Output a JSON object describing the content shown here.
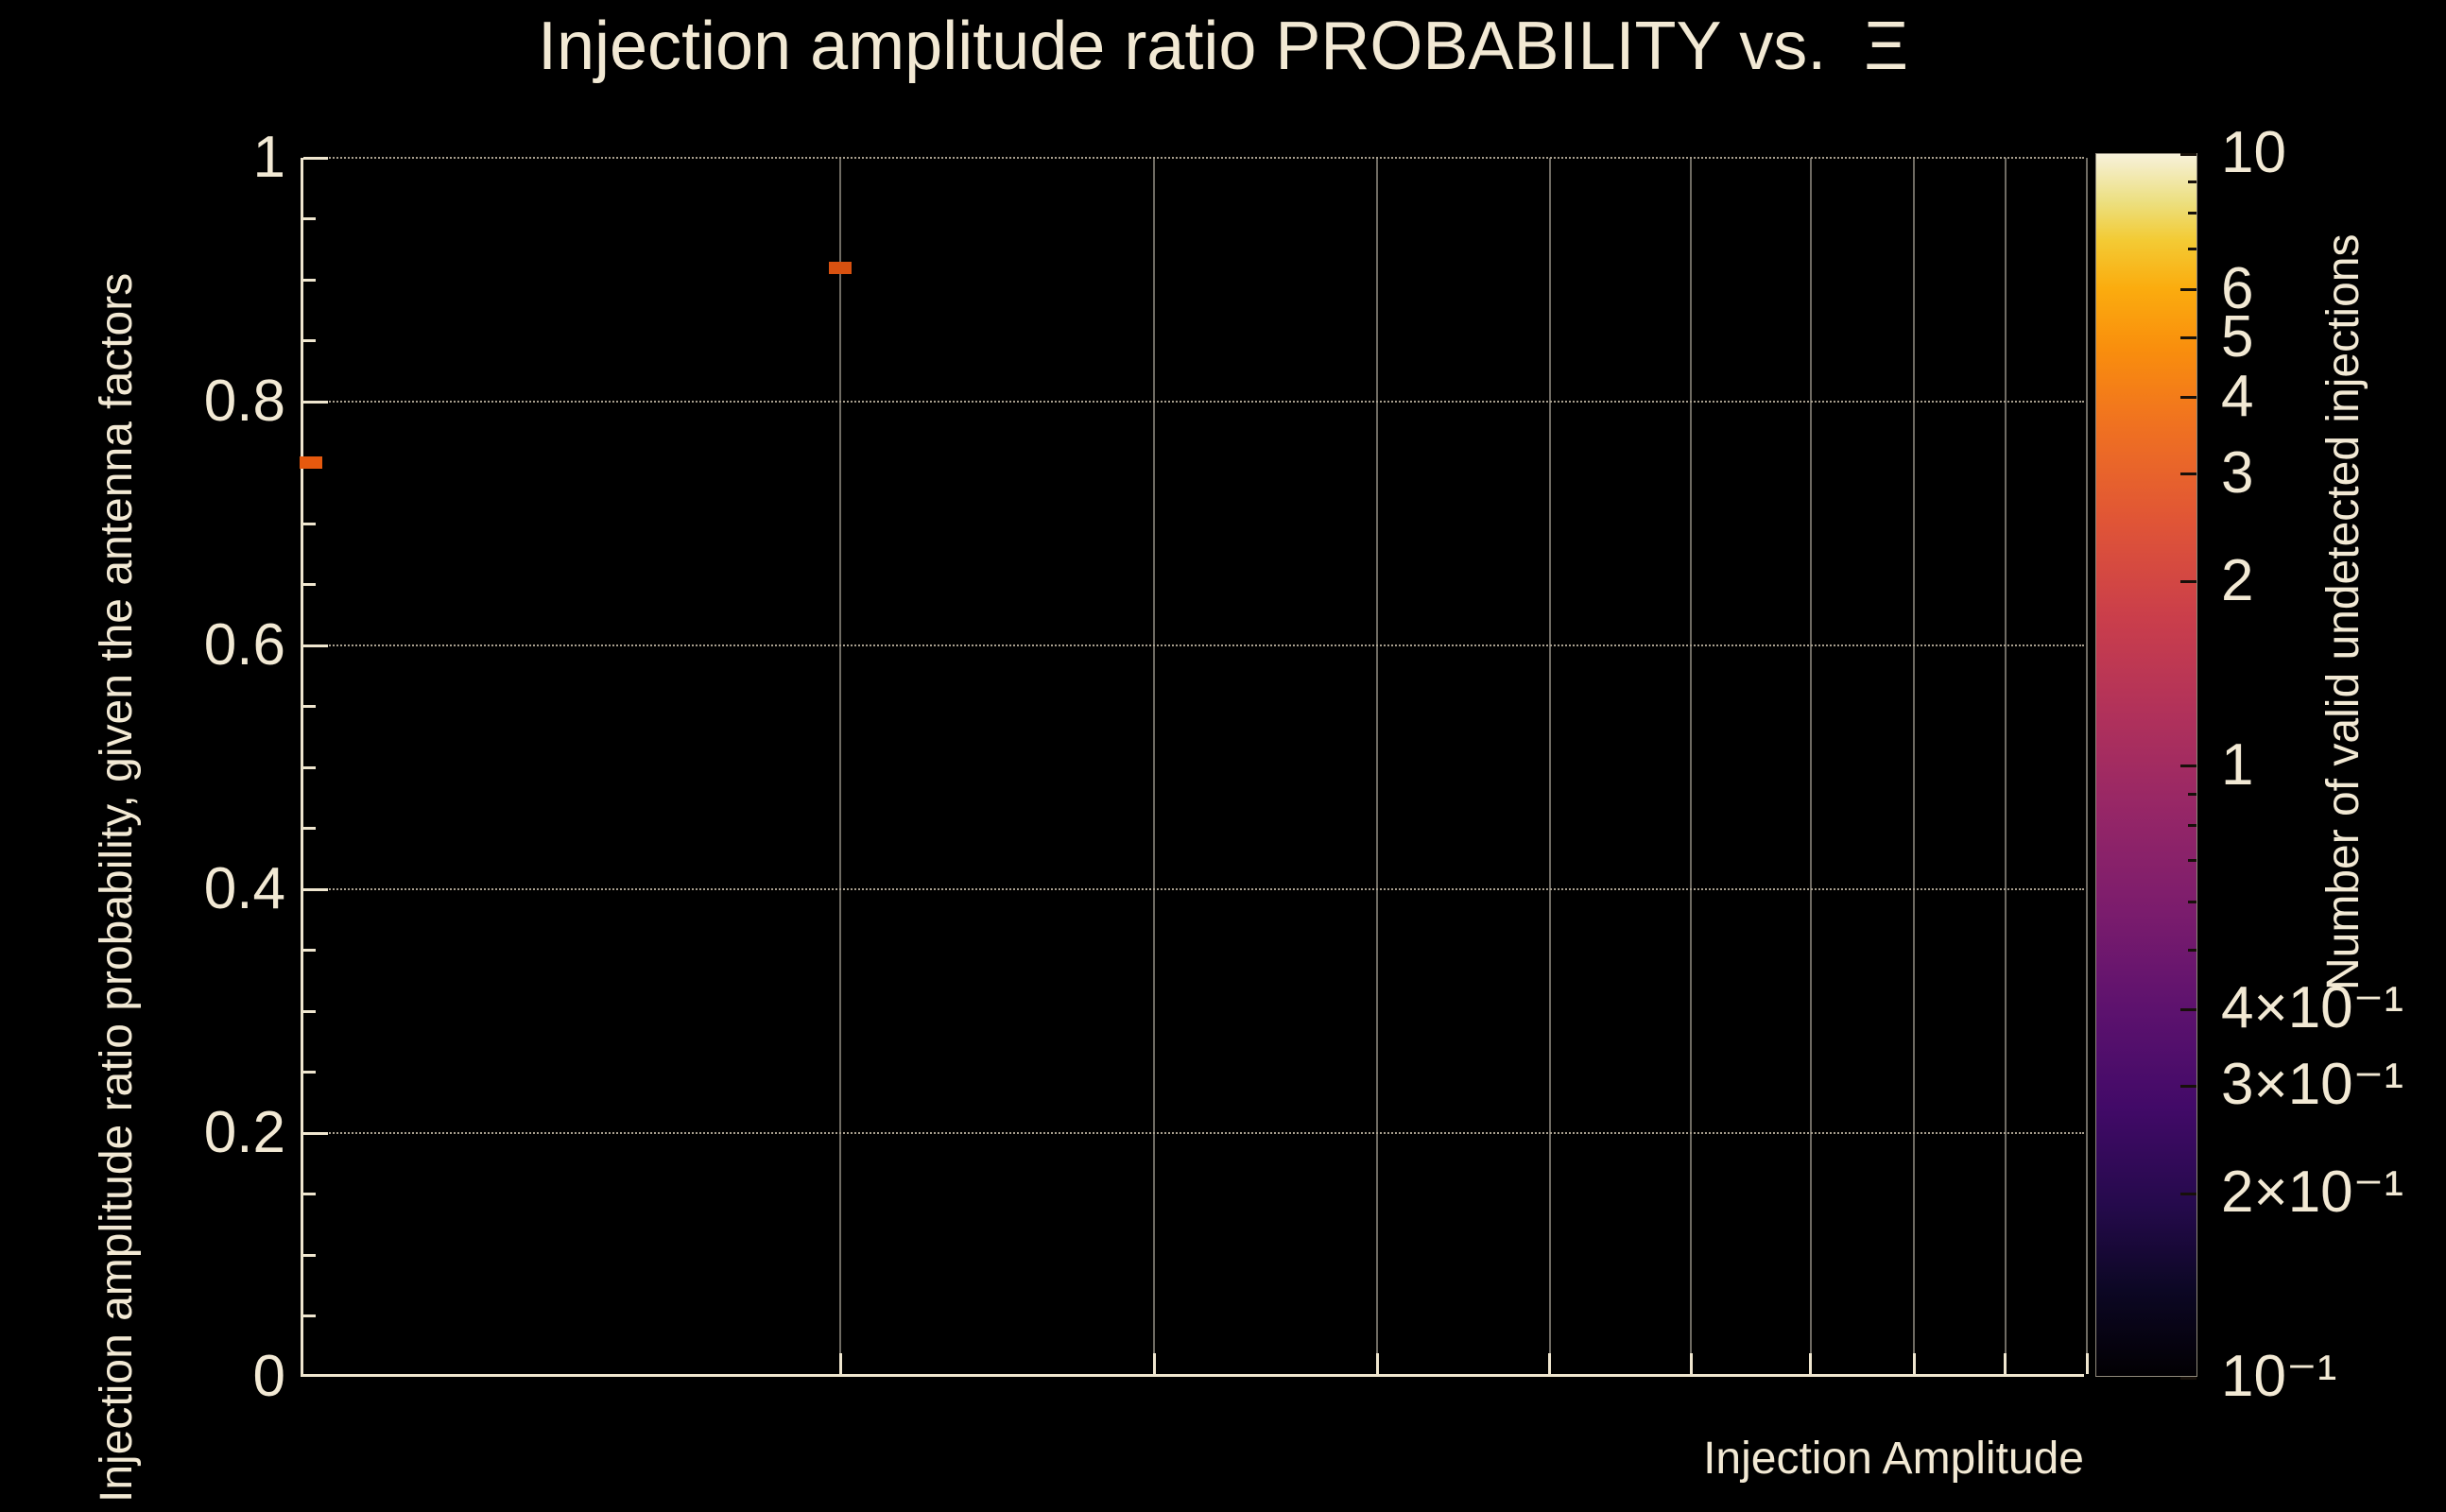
{
  "colors": {
    "background": "#000000",
    "text": "#f2e9d4",
    "axis_line": "#efe6cf",
    "x_grid": "#6f6b63",
    "y_grid": "#a89f8e",
    "colorbar_tick": "#17100a"
  },
  "chart_data": {
    "type": "heatmap",
    "title": "Injection amplitude ratio PROBABILITY vs.  Ξ",
    "xlabel": "Injection Amplitude",
    "ylabel": "Injection amplitude ratio probability, given the antenna factors",
    "zlabel": "Number of valid undetected injections",
    "x": {
      "scale": "log",
      "min": 1,
      "max": 10,
      "grid": [
        2,
        3,
        4,
        5,
        6,
        7,
        8,
        9,
        10
      ],
      "tick_labels_visible": false
    },
    "y": {
      "scale": "linear",
      "min": 0,
      "max": 1,
      "grid": [
        0.2,
        0.4,
        0.6,
        0.8,
        1.0
      ],
      "minor_step": 0.05,
      "ticks": [
        {
          "v": 1,
          "label": "1"
        },
        {
          "v": 0.8,
          "label": "0.8"
        },
        {
          "v": 0.6,
          "label": "0.6"
        },
        {
          "v": 0.4,
          "label": "0.4"
        },
        {
          "v": 0.2,
          "label": "0.2"
        },
        {
          "v": 0,
          "label": "0"
        }
      ]
    },
    "z": {
      "scale": "log",
      "min": 0.1,
      "max": 10,
      "ticks": [
        {
          "v": 10,
          "label": "10"
        },
        {
          "v": 6,
          "label": "6"
        },
        {
          "v": 5,
          "label": "5"
        },
        {
          "v": 4,
          "label": "4"
        },
        {
          "v": 3,
          "label": "3"
        },
        {
          "v": 2,
          "label": "2"
        },
        {
          "v": 1,
          "label": "1"
        },
        {
          "v": 0.4,
          "label": "4×10⁻¹"
        },
        {
          "v": 0.3,
          "label": "3×10⁻¹"
        },
        {
          "v": 0.2,
          "label": "2×10⁻¹"
        },
        {
          "v": 0.1,
          "label": "10⁻¹"
        }
      ],
      "minor_ticks": [
        9,
        8,
        7,
        0.9,
        0.8,
        0.7,
        0.6,
        0.5
      ]
    },
    "points": [
      {
        "x": 1.01,
        "y": 0.75,
        "value": 2,
        "color": "#e6590e"
      },
      {
        "x": 2.0,
        "y": 0.91,
        "value": 2,
        "color": "#d85110"
      }
    ],
    "palette": {
      "scale": "log",
      "range": [
        0.1,
        10
      ],
      "stops": [
        [
          "0%",
          "#020003"
        ],
        [
          "7%",
          "#0c0724"
        ],
        [
          "14%",
          "#250a4c"
        ],
        [
          "22%",
          "#420a68"
        ],
        [
          "30%",
          "#5d126e"
        ],
        [
          "38%",
          "#7b1c6d"
        ],
        [
          "46%",
          "#952667"
        ],
        [
          "54%",
          "#b0315b"
        ],
        [
          "62%",
          "#ca3e4b"
        ],
        [
          "70%",
          "#e05536"
        ],
        [
          "78%",
          "#f07220"
        ],
        [
          "84%",
          "#f98e0d"
        ],
        [
          "89%",
          "#fbac0e"
        ],
        [
          "93%",
          "#f3cb35"
        ],
        [
          "96%",
          "#ecdf7e"
        ],
        [
          "100%",
          "#f7f1da"
        ]
      ]
    }
  }
}
